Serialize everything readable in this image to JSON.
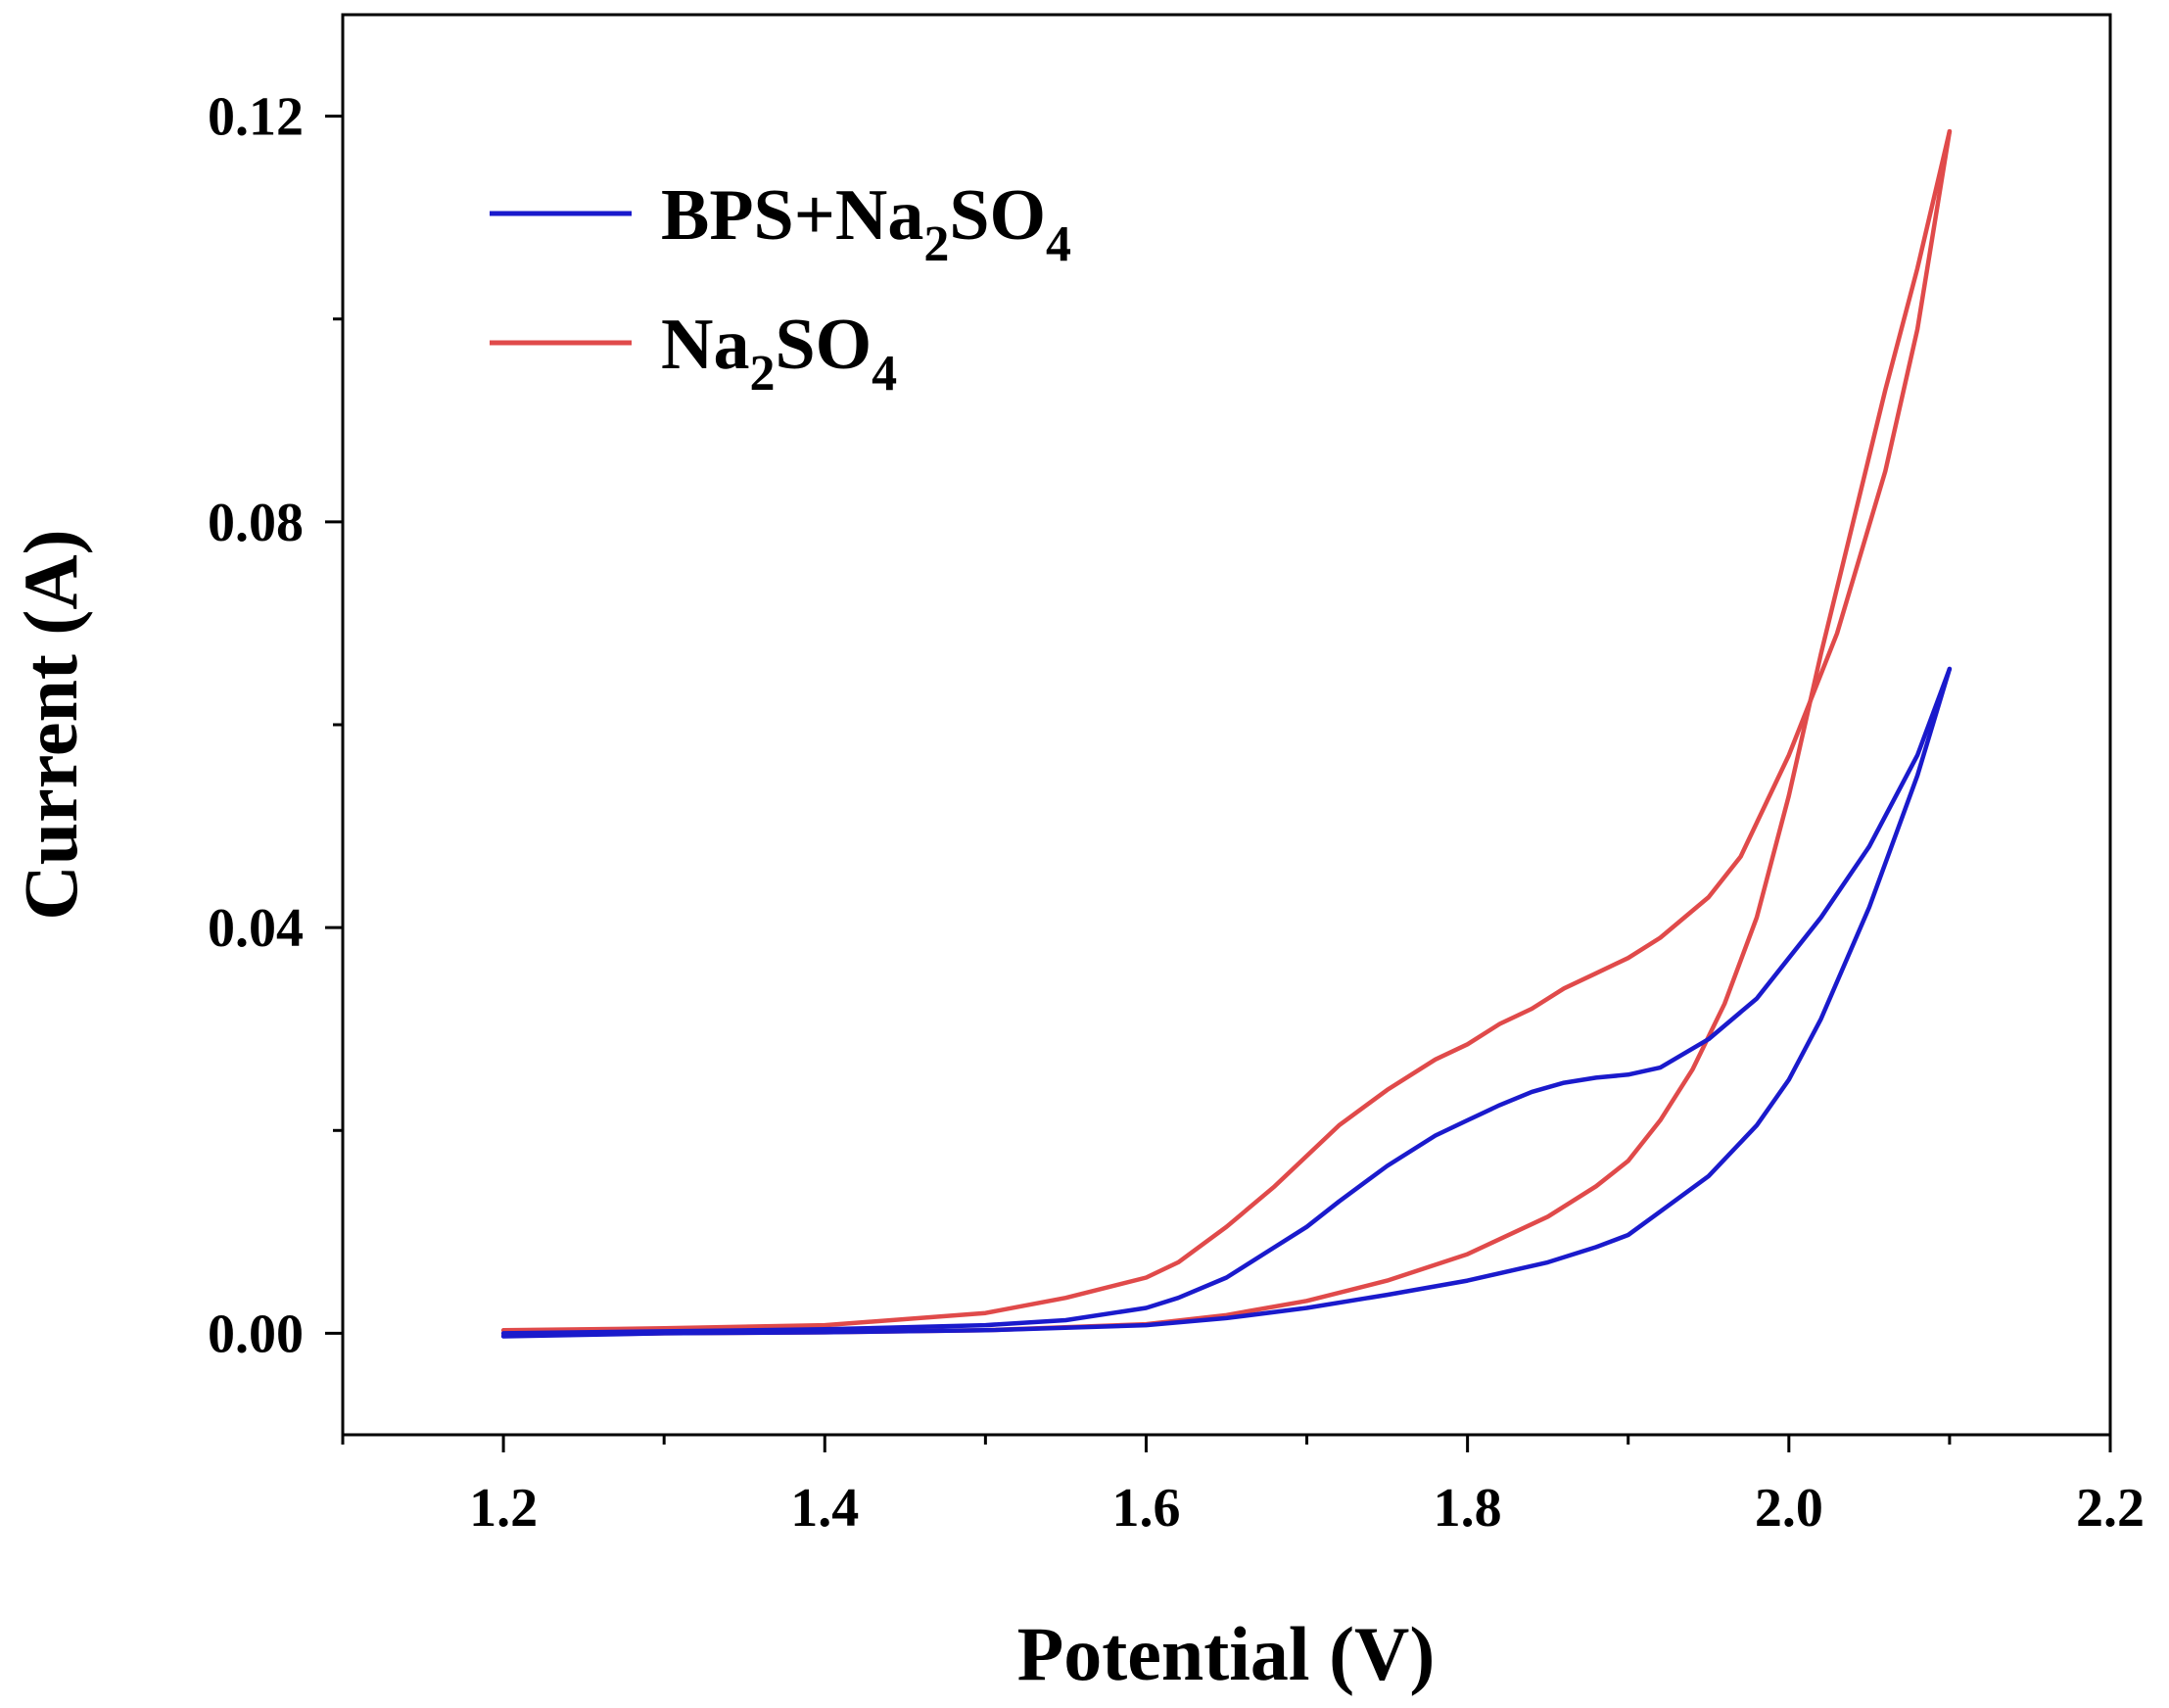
{
  "chart_data": {
    "type": "line",
    "title": "",
    "xlabel": "Potential (V)",
    "ylabel": "Current (A)",
    "xlim": [
      1.1,
      2.2
    ],
    "ylim": [
      -0.01,
      0.13
    ],
    "x_ticks": [
      1.2,
      1.4,
      1.6,
      1.8,
      2.0,
      2.2
    ],
    "x_tick_labels": [
      "1.2",
      "1.4",
      "1.6",
      "1.8",
      "2.0",
      "2.2"
    ],
    "x_minor_ticks": [
      1.1,
      1.3,
      1.5,
      1.7,
      1.9,
      2.1
    ],
    "y_ticks": [
      0.0,
      0.04,
      0.08,
      0.12
    ],
    "y_tick_labels": [
      "0.00",
      "0.04",
      "0.08",
      "0.12"
    ],
    "y_minor_ticks": [
      0.02,
      0.06,
      0.1
    ],
    "grid": false,
    "legend_position": "top-left",
    "series": [
      {
        "name": "BPS+Na2SO4",
        "legend_parts": {
          "a": "BPS+Na",
          "sub1": "2",
          "b": "SO",
          "sub2": "4"
        },
        "color": "#1a1acc",
        "forward": {
          "x": [
            1.2,
            1.3,
            1.4,
            1.5,
            1.55,
            1.6,
            1.62,
            1.65,
            1.68,
            1.7,
            1.72,
            1.75,
            1.78,
            1.8,
            1.82,
            1.84,
            1.86,
            1.88,
            1.9,
            1.92,
            1.95,
            1.98,
            2.0,
            2.02,
            2.05,
            2.08,
            2.1
          ],
          "y": [
            0.0,
            0.0002,
            0.0004,
            0.0008,
            0.0013,
            0.0025,
            0.0035,
            0.0055,
            0.0085,
            0.0105,
            0.013,
            0.0165,
            0.0195,
            0.021,
            0.0225,
            0.0238,
            0.0247,
            0.0252,
            0.0255,
            0.0262,
            0.029,
            0.033,
            0.037,
            0.041,
            0.048,
            0.057,
            0.0655
          ]
        },
        "reverse": {
          "x": [
            2.1,
            2.08,
            2.05,
            2.02,
            2.0,
            1.98,
            1.95,
            1.92,
            1.9,
            1.88,
            1.85,
            1.8,
            1.75,
            1.7,
            1.65,
            1.6,
            1.5,
            1.4,
            1.3,
            1.2
          ],
          "y": [
            0.0655,
            0.055,
            0.042,
            0.031,
            0.025,
            0.0205,
            0.0155,
            0.012,
            0.0097,
            0.0085,
            0.007,
            0.0052,
            0.0038,
            0.0025,
            0.0015,
            0.0008,
            0.0003,
            0.0001,
            0.0,
            -0.0003
          ]
        }
      },
      {
        "name": "Na2SO4",
        "legend_parts": {
          "a": "Na",
          "sub1": "2",
          "b": "SO",
          "sub2": "4"
        },
        "color": "#e04a4a",
        "forward": {
          "x": [
            1.2,
            1.3,
            1.4,
            1.5,
            1.55,
            1.6,
            1.62,
            1.65,
            1.68,
            1.7,
            1.72,
            1.75,
            1.78,
            1.8,
            1.82,
            1.84,
            1.86,
            1.88,
            1.9,
            1.92,
            1.95,
            1.97,
            2.0,
            2.03,
            2.06,
            2.08,
            2.1
          ],
          "y": [
            0.0003,
            0.0005,
            0.0008,
            0.002,
            0.0035,
            0.0055,
            0.007,
            0.0105,
            0.0145,
            0.0175,
            0.0205,
            0.024,
            0.027,
            0.0285,
            0.0305,
            0.032,
            0.034,
            0.0355,
            0.037,
            0.039,
            0.043,
            0.047,
            0.057,
            0.069,
            0.085,
            0.099,
            0.1185
          ]
        },
        "reverse": {
          "x": [
            2.1,
            2.08,
            2.06,
            2.04,
            2.02,
            2.0,
            1.98,
            1.96,
            1.94,
            1.92,
            1.9,
            1.88,
            1.85,
            1.8,
            1.75,
            1.7,
            1.65,
            1.6,
            1.5,
            1.4,
            1.3,
            1.2
          ],
          "y": [
            0.1185,
            0.105,
            0.093,
            0.08,
            0.067,
            0.053,
            0.041,
            0.0325,
            0.026,
            0.021,
            0.017,
            0.0145,
            0.0115,
            0.0078,
            0.0052,
            0.0032,
            0.0018,
            0.0009,
            0.0003,
            0.0001,
            0.0,
            -0.0002
          ]
        }
      }
    ]
  }
}
